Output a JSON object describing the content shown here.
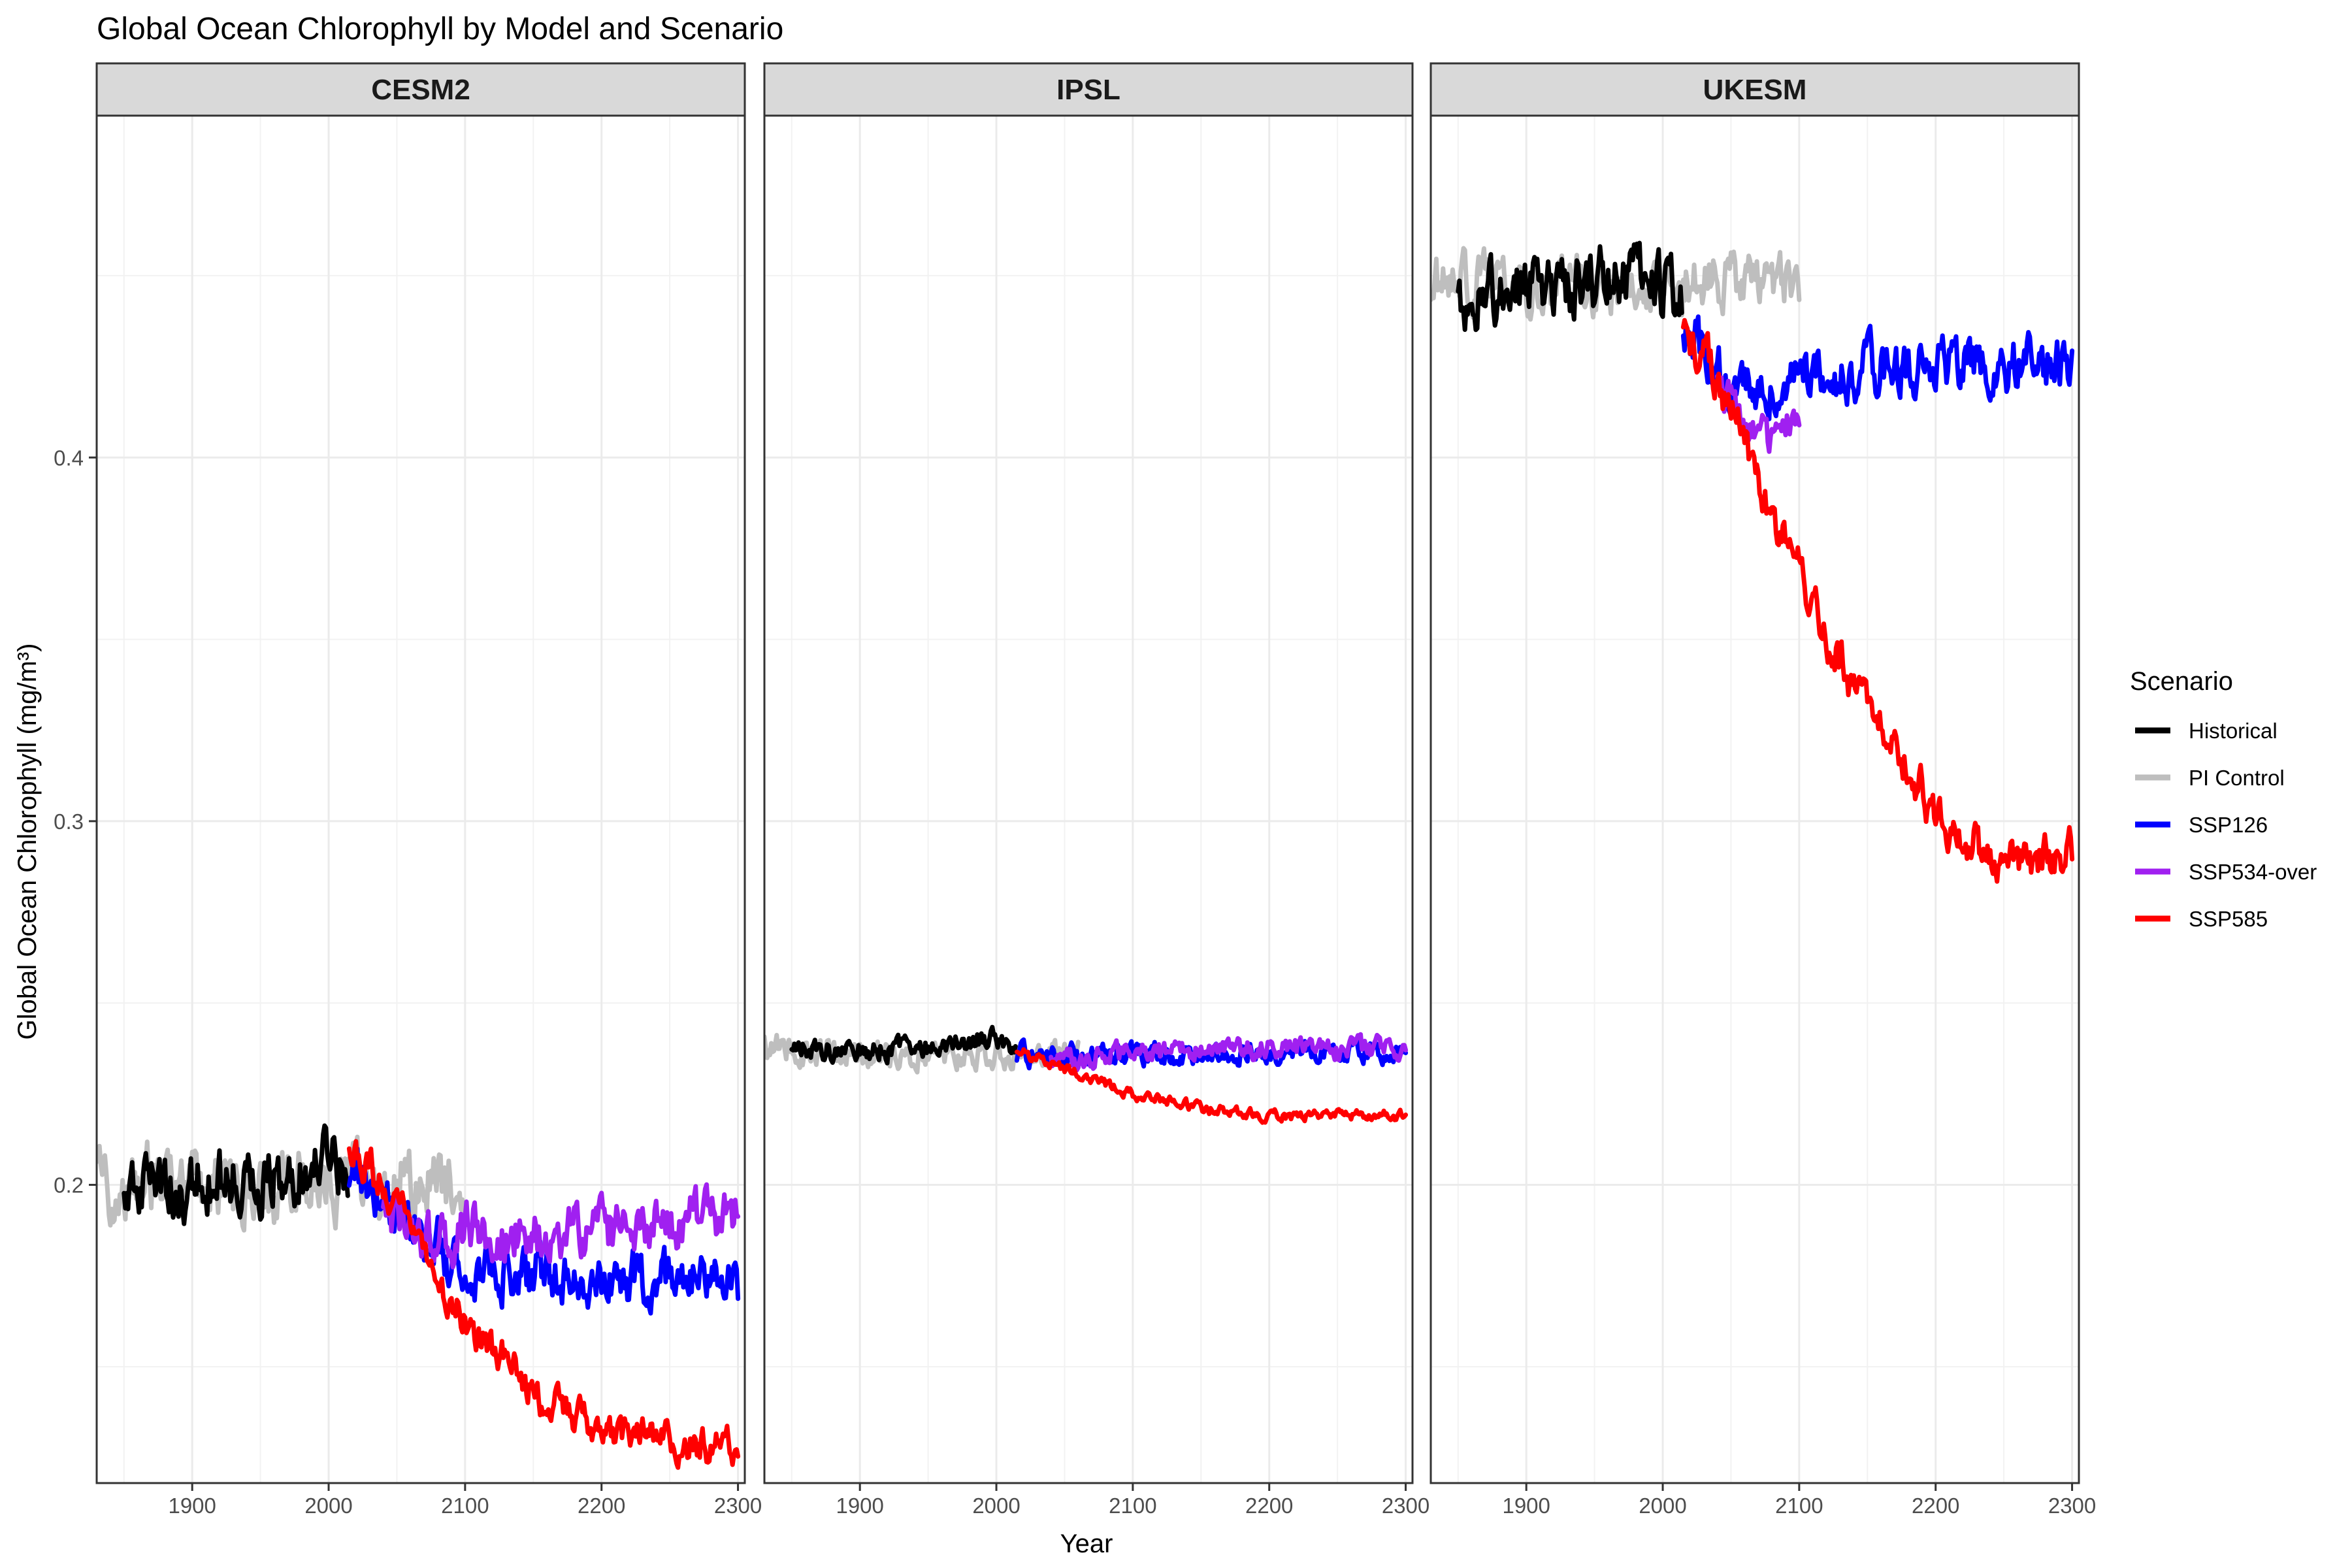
{
  "chart_data": {
    "type": "line",
    "title": "Global Ocean Chlorophyll by Model and Scenario",
    "xlabel": "Year",
    "ylabel": "Global Ocean Chlorophyll (mg/m³)",
    "xlim": [
      1830,
      2305
    ],
    "ylim": [
      0.118,
      0.494
    ],
    "x_ticks": [
      1900,
      2000,
      2100,
      2200,
      2300
    ],
    "x_tick_labels": [
      "1900",
      "2000",
      "2100",
      "2200",
      "2300"
    ],
    "y_ticks": [
      0.2,
      0.3,
      0.4
    ],
    "y_tick_labels": [
      "0.2",
      "0.3",
      "0.4"
    ],
    "grid": true,
    "legend": {
      "title": "Scenario",
      "placement": "right",
      "entries": [
        {
          "name": "Historical",
          "color": "#000000"
        },
        {
          "name": "PI Control",
          "color": "#bebebe"
        },
        {
          "name": "SSP126",
          "color": "#0000ff"
        },
        {
          "name": "SSP534-over",
          "color": "#a020f0"
        },
        {
          "name": "SSP585",
          "color": "#ff0000"
        }
      ]
    },
    "draw_order": [
      "PI Control",
      "Historical",
      "SSP126",
      "SSP534-over",
      "SSP585"
    ],
    "panels": [
      {
        "name": "CESM2",
        "series": [
          {
            "name": "PI Control",
            "x": [
              1830,
              1870,
              1920,
              1970,
              2020,
              2060,
              2100
            ],
            "y": [
              0.2,
              0.201,
              0.2,
              0.2,
              0.2,
              0.201,
              0.2
            ],
            "noise": 0.008
          },
          {
            "name": "Historical",
            "x": [
              1850,
              1900,
              1950,
              2000,
              2014
            ],
            "y": [
              0.198,
              0.2,
              0.202,
              0.206,
              0.205
            ],
            "noise": 0.007
          },
          {
            "name": "SSP126",
            "x": [
              2015,
              2050,
              2080,
              2100,
              2150,
              2200,
              2250,
              2300
            ],
            "y": [
              0.205,
              0.195,
              0.183,
              0.176,
              0.175,
              0.174,
              0.174,
              0.172
            ],
            "noise": 0.006
          },
          {
            "name": "SSP534-over",
            "x": [
              2040,
              2060,
              2080,
              2100,
              2150,
              2200,
              2250,
              2300
            ],
            "y": [
              0.192,
              0.188,
              0.185,
              0.188,
              0.186,
              0.187,
              0.19,
              0.192
            ],
            "noise": 0.006
          },
          {
            "name": "SSP585",
            "x": [
              2015,
              2050,
              2080,
              2100,
              2130,
              2150,
              2200,
              2250,
              2300
            ],
            "y": [
              0.212,
              0.195,
              0.175,
              0.162,
              0.152,
              0.142,
              0.133,
              0.129,
              0.128
            ],
            "noise": 0.004
          }
        ]
      },
      {
        "name": "IPSL",
        "series": [
          {
            "name": "PI Control",
            "x": [
              1830,
              1900,
              1950,
              2000,
              2060
            ],
            "y": [
              0.238,
              0.236,
              0.236,
              0.236,
              0.236
            ],
            "noise": 0.003
          },
          {
            "name": "Historical",
            "x": [
              1850,
              1900,
              1950,
              1990,
              2014
            ],
            "y": [
              0.237,
              0.237,
              0.238,
              0.24,
              0.239
            ],
            "noise": 0.0025
          },
          {
            "name": "SSP126",
            "x": [
              2015,
              2050,
              2100,
              2150,
              2200,
              2250,
              2300
            ],
            "y": [
              0.236,
              0.235,
              0.236,
              0.236,
              0.236,
              0.236,
              0.236
            ],
            "noise": 0.0025
          },
          {
            "name": "SSP534-over",
            "x": [
              2040,
              2100,
              2150,
              2200,
              2250,
              2300
            ],
            "y": [
              0.234,
              0.236,
              0.237,
              0.238,
              0.238,
              0.237
            ],
            "noise": 0.0025
          },
          {
            "name": "SSP585",
            "x": [
              2015,
              2050,
              2100,
              2150,
              2200,
              2250,
              2300
            ],
            "y": [
              0.237,
              0.232,
              0.225,
              0.221,
              0.219,
              0.219,
              0.219
            ],
            "noise": 0.0012
          }
        ]
      },
      {
        "name": "UKESM",
        "series": [
          {
            "name": "PI Control",
            "x": [
              1830,
              1900,
              1950,
              2000,
              2050,
              2100
            ],
            "y": [
              0.449,
              0.447,
              0.447,
              0.447,
              0.449,
              0.448
            ],
            "noise": 0.006
          },
          {
            "name": "Historical",
            "x": [
              1850,
              1900,
              1950,
              1980,
              2000,
              2014
            ],
            "y": [
              0.444,
              0.447,
              0.448,
              0.451,
              0.446,
              0.442
            ],
            "noise": 0.007
          },
          {
            "name": "SSP126",
            "x": [
              2015,
              2040,
              2060,
              2080,
              2100,
              2150,
              2200,
              2250,
              2300
            ],
            "y": [
              0.437,
              0.424,
              0.418,
              0.42,
              0.422,
              0.424,
              0.426,
              0.426,
              0.425
            ],
            "noise": 0.006
          },
          {
            "name": "SSP534-over",
            "x": [
              2040,
              2060,
              2080,
              2100
            ],
            "y": [
              0.42,
              0.41,
              0.405,
              0.413
            ],
            "noise": 0.004
          },
          {
            "name": "SSP585",
            "x": [
              2015,
              2040,
              2060,
              2080,
              2100,
              2120,
              2150,
              2180,
              2200,
              2230,
              2250,
              2270,
              2300
            ],
            "y": [
              0.437,
              0.421,
              0.405,
              0.385,
              0.368,
              0.35,
              0.33,
              0.315,
              0.302,
              0.294,
              0.29,
              0.29,
              0.291
            ],
            "noise": 0.005
          }
        ]
      }
    ]
  }
}
